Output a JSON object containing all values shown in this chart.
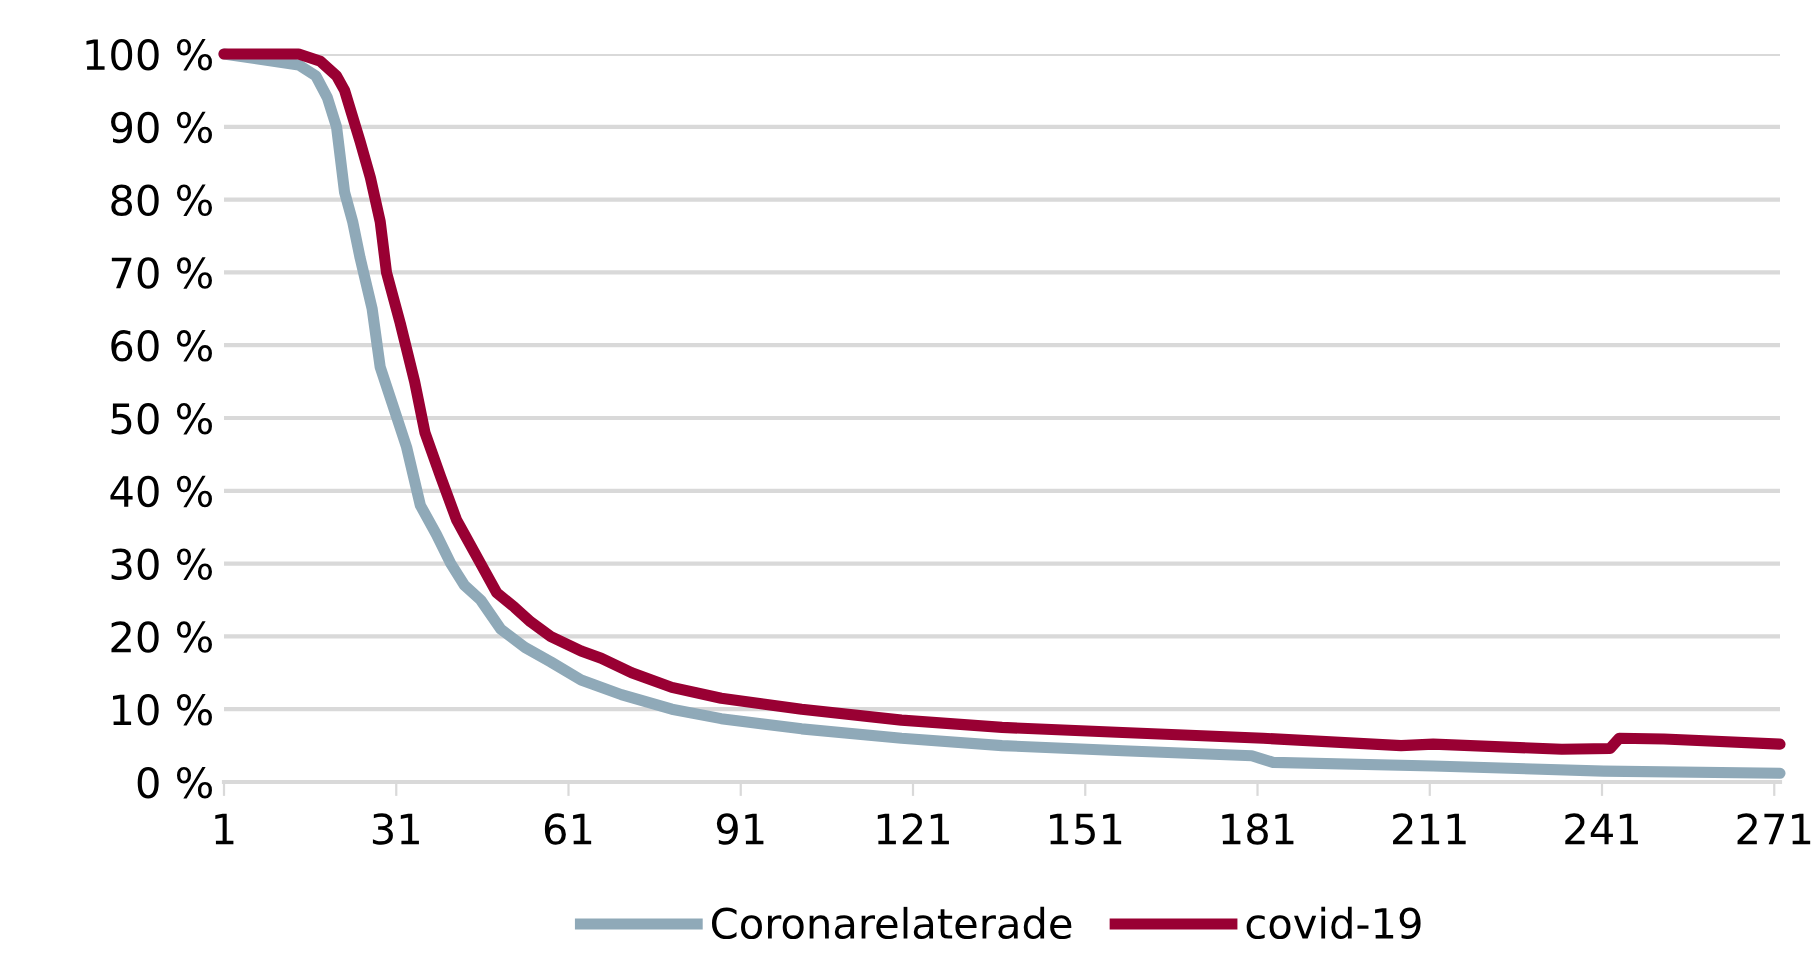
{
  "chart_data": {
    "type": "line",
    "xlim": [
      1,
      272
    ],
    "xticks": [
      1,
      31,
      61,
      91,
      121,
      151,
      181,
      211,
      241,
      271
    ],
    "ylim": [
      0,
      100
    ],
    "yticks": [
      {
        "value": 0,
        "label": "0 %"
      },
      {
        "value": 10,
        "label": "10 %"
      },
      {
        "value": 20,
        "label": "20 %"
      },
      {
        "value": 30,
        "label": "30 %"
      },
      {
        "value": 40,
        "label": "40 %"
      },
      {
        "value": 50,
        "label": "50 %"
      },
      {
        "value": 60,
        "label": "60 %"
      },
      {
        "value": 70,
        "label": "70 %"
      },
      {
        "value": 80,
        "label": "80 %"
      },
      {
        "value": 90,
        "label": "90 %"
      },
      {
        "value": 100,
        "label": "100 %"
      }
    ],
    "grid": "y",
    "legend": "bottom",
    "marker": "none",
    "line_style": "solid",
    "series": [
      {
        "name": "Coronarelaterade",
        "color": "#8fa9b8",
        "x": [
          1,
          14,
          17,
          19,
          20.6,
          22,
          23.4,
          24.7,
          26.8,
          28.2,
          30.3,
          32.8,
          35.2,
          38,
          40.5,
          42.9,
          45.7,
          49.2,
          53.4,
          57.9,
          63.2,
          70.2,
          79,
          87.6,
          101.6,
          119,
          136.5,
          157.5,
          180,
          183.7,
          211.6,
          241.3,
          272
        ],
        "values": [
          100,
          98.5,
          97,
          94,
          90,
          81,
          77,
          72,
          65,
          57,
          52,
          46,
          38,
          34,
          30,
          27,
          25,
          21,
          18.5,
          16.5,
          14,
          12,
          10,
          8.7,
          7.3,
          6,
          5,
          4.3,
          3.6,
          2.7,
          2.2,
          1.5,
          1.2
        ]
      },
      {
        "name": "covid-19",
        "color": "#990033",
        "x": [
          1,
          14,
          17.8,
          20.6,
          22,
          24.7,
          26.5,
          28.2,
          29.3,
          31.7,
          34.2,
          36,
          38.7,
          41.5,
          42.9,
          45.7,
          48.5,
          51.6,
          54.4,
          57.9,
          63.2,
          66.7,
          72,
          79,
          87.6,
          101.6,
          119,
          136.5,
          157.5,
          182,
          206,
          211.6,
          234,
          242.4,
          244,
          251.8,
          272
        ],
        "values": [
          100,
          100,
          99,
          97,
          95,
          88,
          83,
          77,
          70,
          63,
          55,
          48,
          42,
          36,
          34,
          30,
          26,
          24,
          22,
          20,
          18,
          17,
          15,
          13,
          11.5,
          10,
          8.5,
          7.5,
          6.8,
          6,
          5,
          5.2,
          4.5,
          4.6,
          6,
          5.9,
          5.2
        ]
      }
    ]
  }
}
